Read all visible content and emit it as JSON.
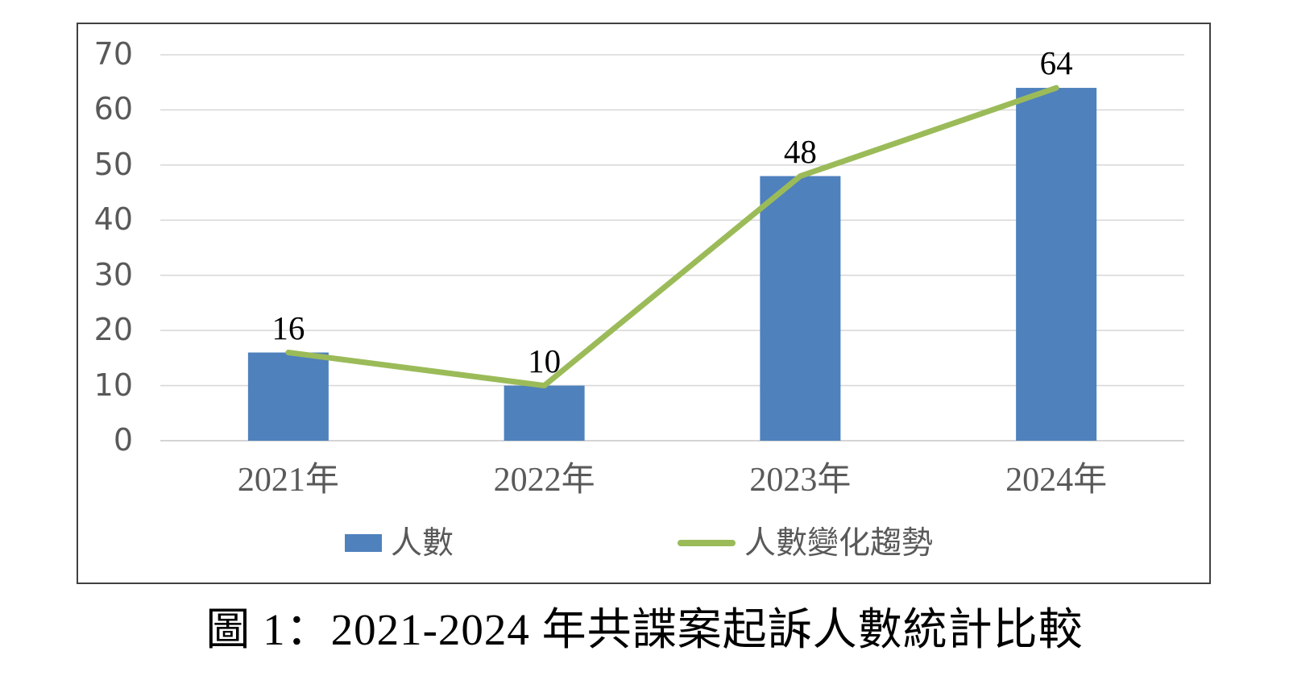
{
  "chart_data": {
    "type": "bar",
    "categories": [
      "2021年",
      "2022年",
      "2023年",
      "2024年"
    ],
    "series": [
      {
        "name": "人數",
        "type": "bar",
        "values": [
          16,
          10,
          48,
          64
        ],
        "color": "#4F81BD"
      },
      {
        "name": "人數變化趨勢",
        "type": "line",
        "values": [
          16,
          10,
          48,
          64
        ],
        "color": "#9BBB59"
      }
    ],
    "data_labels": [
      "16",
      "10",
      "48",
      "64"
    ],
    "yticks": [
      0,
      10,
      20,
      30,
      40,
      50,
      60,
      70
    ],
    "ylim": [
      0,
      70
    ],
    "xlabel": "",
    "ylabel": "",
    "title": "",
    "grid": true,
    "legend_position": "bottom"
  },
  "legend": {
    "items": [
      {
        "label": "人數",
        "swatch": "bar",
        "color": "#4F81BD"
      },
      {
        "label": "人數變化趨勢",
        "swatch": "line",
        "color": "#9BBB59"
      }
    ]
  },
  "caption": "圖 1：2021-2024 年共諜案起訴人數統計比較",
  "colors": {
    "bar": "#4F81BD",
    "line": "#9BBB59",
    "grid": "#D9D9D9",
    "baseline": "#C6C6C6",
    "axis_text": "#595959",
    "data_label_text": "#000000",
    "panel_border": "#404040"
  }
}
